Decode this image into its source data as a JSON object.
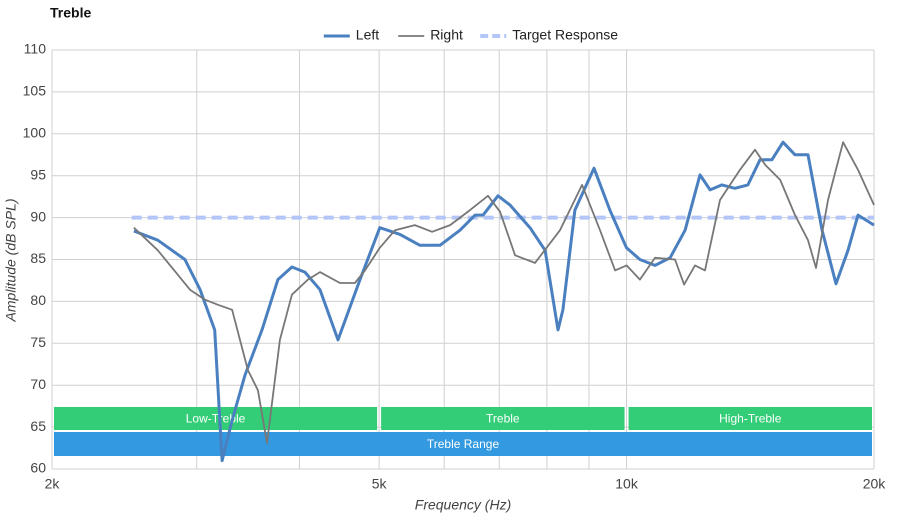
{
  "chart_data": {
    "type": "line",
    "title": "Treble",
    "xlabel": "Frequency (Hz)",
    "ylabel": "Amplitude (dB SPL)",
    "xscale": "log",
    "xlim": [
      2000,
      20000
    ],
    "ylim": [
      60,
      110
    ],
    "xticks": [
      {
        "value": 2000,
        "label": "2k"
      },
      {
        "value": 5000,
        "label": "5k"
      },
      {
        "value": 10000,
        "label": "10k"
      },
      {
        "value": 20000,
        "label": "20k"
      }
    ],
    "xgrid_minor": [
      3000,
      4000,
      6000,
      7000,
      8000,
      9000
    ],
    "yticks": [
      60,
      65,
      70,
      75,
      80,
      85,
      90,
      95,
      100,
      105,
      110
    ],
    "grid": true,
    "legend": "top",
    "series": [
      {
        "name": "Left",
        "color": "#4a80c0",
        "style": "thick",
        "x": [
          2516,
          2690,
          2902,
          3028,
          3155,
          3221,
          3312,
          3434,
          3602,
          3766,
          3916,
          4062,
          4237,
          4456,
          4740,
          5010,
          5302,
          5606,
          5930,
          6272,
          6542,
          6690,
          6976,
          7214,
          7630,
          7960,
          8252,
          8368,
          8654,
          9128,
          9544,
          9999,
          10380,
          10830,
          11296,
          11782,
          12286,
          12636,
          13062,
          13546,
          14048,
          14532,
          15026,
          15500,
          16028,
          16624,
          17292,
          17980,
          18596,
          19122,
          20000
        ],
        "values": [
          88.4,
          87.3,
          85,
          81.4,
          76.6,
          61,
          65.8,
          71.2,
          76.6,
          82.6,
          84.1,
          83.5,
          81.4,
          75.4,
          82.6,
          88.8,
          88,
          86.7,
          86.7,
          88.5,
          90.3,
          90.3,
          92.6,
          91.5,
          88.8,
          86.1,
          76.6,
          79,
          90.9,
          95.9,
          90.9,
          86.4,
          85,
          84.3,
          85.2,
          88.5,
          95.1,
          93.3,
          93.9,
          93.5,
          93.9,
          96.9,
          96.9,
          99,
          97.5,
          97.5,
          88.5,
          82.1,
          86.1,
          90.3,
          89.1
        ]
      },
      {
        "name": "Right",
        "color": "#777777",
        "style": "thin",
        "x": [
          2516,
          2690,
          2944,
          3070,
          3184,
          3312,
          3462,
          3561,
          3652,
          3787,
          3916,
          4096,
          4237,
          4480,
          4672,
          4806,
          5010,
          5228,
          5528,
          5800,
          6100,
          6450,
          6784,
          7016,
          7318,
          7738,
          8300,
          8828,
          9284,
          9684,
          10000,
          10380,
          10830,
          11454,
          11748,
          12112,
          12458,
          12994,
          13742,
          14330,
          14740,
          15380,
          16028,
          16624,
          17000,
          17580,
          18340,
          19122,
          20000
        ],
        "values": [
          88.8,
          86.1,
          81.4,
          80.2,
          79.6,
          79,
          71.8,
          69.4,
          63.1,
          75.4,
          80.8,
          82.6,
          83.5,
          82.2,
          82.2,
          83.7,
          86.4,
          88.5,
          89.1,
          88.3,
          89.1,
          90.9,
          92.6,
          90.7,
          85.5,
          84.6,
          88.5,
          93.9,
          88.5,
          83.7,
          84.3,
          82.6,
          85.2,
          85,
          82,
          84.3,
          83.7,
          92.1,
          95.7,
          98.1,
          96.3,
          94.5,
          90.3,
          87.3,
          84,
          92.1,
          99,
          95.7,
          91.5
        ]
      },
      {
        "name": "Target Response",
        "color": "#b3c6f7",
        "style": "dashed",
        "x": [
          2500,
          20000
        ],
        "values": [
          90,
          90
        ]
      }
    ],
    "bands": [
      {
        "label": "Low-Treble",
        "from": 2000,
        "to": 5000,
        "color": "#33cc77"
      },
      {
        "label": "Treble",
        "from": 5000,
        "to": 10000,
        "color": "#33cc77"
      },
      {
        "label": "High-Treble",
        "from": 10000,
        "to": 20000,
        "color": "#33cc77"
      }
    ],
    "range_band": {
      "label": "Treble Range",
      "from": 2000,
      "to": 20000,
      "color": "#3399e0"
    }
  }
}
